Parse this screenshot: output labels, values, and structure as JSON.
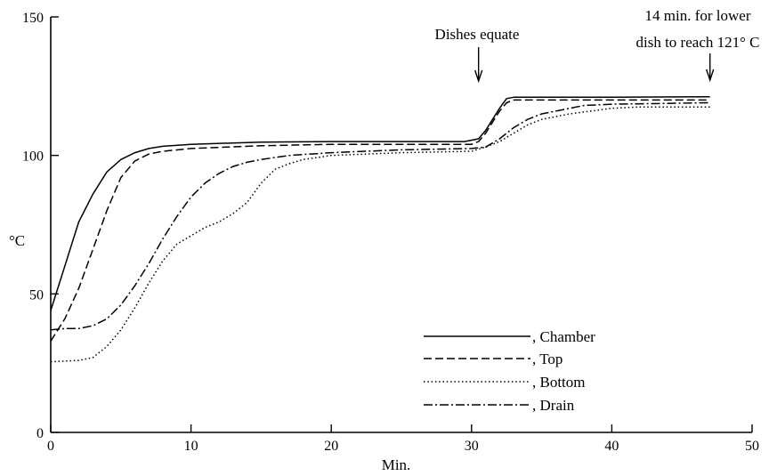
{
  "chart_data": {
    "type": "line",
    "title": "",
    "xlabel": "Min.",
    "ylabel": "°C",
    "xlim": [
      0,
      50
    ],
    "ylim": [
      0,
      150
    ],
    "x_ticks": [
      0,
      10,
      20,
      30,
      40,
      50
    ],
    "y_ticks": [
      0,
      50,
      100,
      150
    ],
    "x_tick_labels": [
      "0",
      "10",
      "20",
      "30",
      "40",
      "50"
    ],
    "y_tick_labels": [
      "0",
      "50",
      "100",
      "150"
    ],
    "grid": false,
    "legend_position": "bottom-right",
    "series": [
      {
        "name": ", Chamber",
        "style": "solid",
        "points": [
          [
            0,
            44
          ],
          [
            0.5,
            52
          ],
          [
            1,
            60
          ],
          [
            1.5,
            68
          ],
          [
            2,
            76
          ],
          [
            3,
            86
          ],
          [
            4,
            94
          ],
          [
            5,
            98.5
          ],
          [
            6,
            101
          ],
          [
            7,
            102.5
          ],
          [
            8,
            103.3
          ],
          [
            10,
            104
          ],
          [
            15,
            104.8
          ],
          [
            20,
            105
          ],
          [
            25,
            105
          ],
          [
            29.5,
            105
          ],
          [
            30.5,
            106
          ],
          [
            31,
            109
          ],
          [
            31.5,
            113
          ],
          [
            32,
            117
          ],
          [
            32.5,
            120.5
          ],
          [
            33,
            121
          ],
          [
            40,
            121
          ],
          [
            47,
            121.2
          ]
        ]
      },
      {
        "name": ", Top",
        "style": "dashed",
        "points": [
          [
            0,
            33
          ],
          [
            1,
            41
          ],
          [
            2,
            52
          ],
          [
            3,
            66
          ],
          [
            4,
            80
          ],
          [
            5,
            92
          ],
          [
            6,
            98
          ],
          [
            7,
            100.5
          ],
          [
            8,
            101.5
          ],
          [
            10,
            102.5
          ],
          [
            15,
            103.5
          ],
          [
            20,
            104
          ],
          [
            25,
            104
          ],
          [
            30,
            104
          ],
          [
            30.5,
            105
          ],
          [
            31,
            108
          ],
          [
            31.5,
            112
          ],
          [
            32,
            116
          ],
          [
            32.5,
            119
          ],
          [
            33,
            120
          ],
          [
            40,
            120
          ],
          [
            47,
            120
          ]
        ]
      },
      {
        "name": ", Bottom",
        "style": "dotted",
        "points": [
          [
            0,
            25.5
          ],
          [
            2,
            26
          ],
          [
            3,
            27
          ],
          [
            4,
            31
          ],
          [
            5,
            37
          ],
          [
            6,
            45
          ],
          [
            7,
            54
          ],
          [
            8,
            62
          ],
          [
            9,
            68
          ],
          [
            10,
            71
          ],
          [
            11,
            74
          ],
          [
            12,
            76
          ],
          [
            13,
            79
          ],
          [
            14,
            83
          ],
          [
            15,
            90
          ],
          [
            16,
            95
          ],
          [
            17,
            97
          ],
          [
            18,
            98.5
          ],
          [
            20,
            100
          ],
          [
            25,
            101
          ],
          [
            30,
            101.5
          ],
          [
            31,
            103
          ],
          [
            32,
            105
          ],
          [
            33,
            108
          ],
          [
            34,
            111
          ],
          [
            35,
            113
          ],
          [
            37,
            115
          ],
          [
            40,
            117
          ],
          [
            42,
            117.5
          ],
          [
            47,
            117.5
          ]
        ]
      },
      {
        "name": ", Drain",
        "style": "dashdot",
        "points": [
          [
            0,
            37
          ],
          [
            1,
            37.5
          ],
          [
            2,
            37.5
          ],
          [
            3,
            38.5
          ],
          [
            4,
            41
          ],
          [
            5,
            46
          ],
          [
            6,
            53
          ],
          [
            7,
            61
          ],
          [
            8,
            70
          ],
          [
            9,
            78
          ],
          [
            10,
            85
          ],
          [
            11,
            90
          ],
          [
            12,
            93.5
          ],
          [
            13,
            96
          ],
          [
            14,
            97.5
          ],
          [
            15,
            98.5
          ],
          [
            17,
            100
          ],
          [
            20,
            101
          ],
          [
            25,
            102
          ],
          [
            30,
            102.5
          ],
          [
            31,
            103
          ],
          [
            32,
            106
          ],
          [
            33,
            110
          ],
          [
            34,
            113
          ],
          [
            35,
            115
          ],
          [
            36,
            116
          ],
          [
            38,
            118
          ],
          [
            40,
            118.5
          ],
          [
            47,
            119
          ]
        ]
      }
    ],
    "annotations": [
      {
        "text": "Dishes equate",
        "arrow_x": 30.5
      },
      {
        "text_line1": "14 min. for lower",
        "text_line2": "dish to reach 121° C",
        "arrow_x": 47
      }
    ]
  }
}
